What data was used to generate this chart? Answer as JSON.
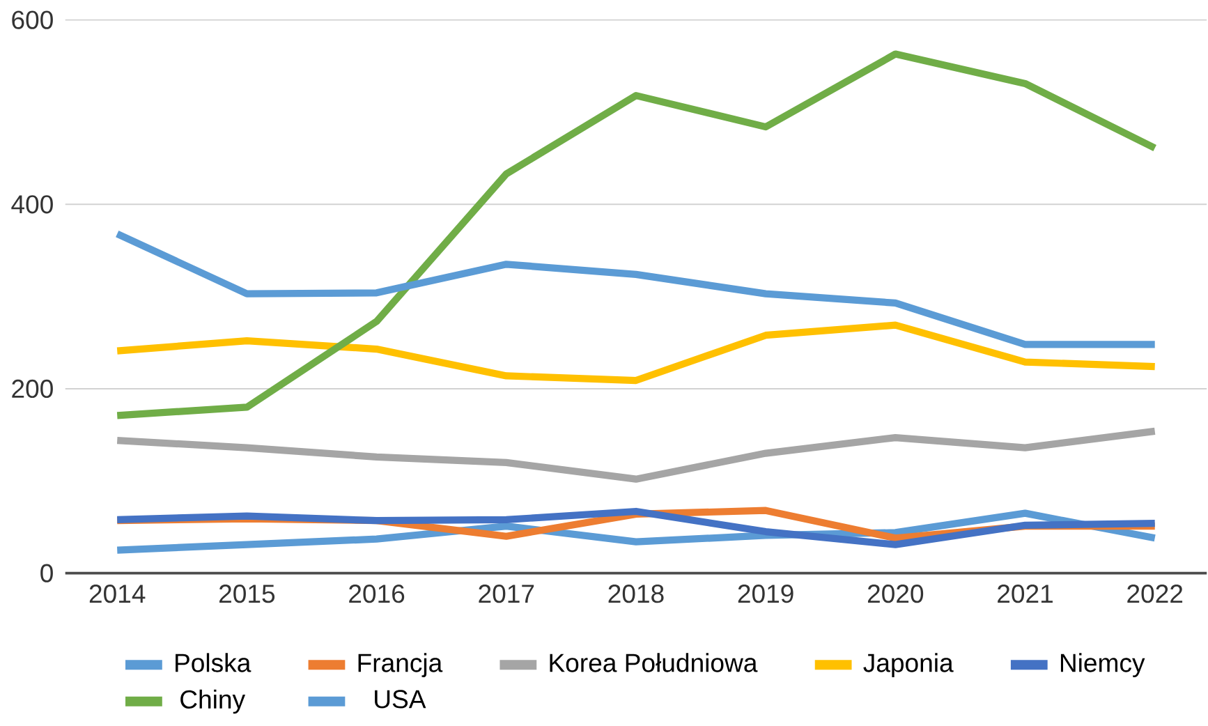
{
  "chart_data": {
    "type": "line",
    "categories": [
      "2014",
      "2015",
      "2016",
      "2017",
      "2018",
      "2019",
      "2020",
      "2021",
      "2022"
    ],
    "ylim": [
      0,
      600
    ],
    "yticks": [
      0,
      200,
      400,
      600
    ],
    "grid": "y",
    "legend": "bottom",
    "marker": "none",
    "line_style": "solid",
    "series": [
      {
        "name": "Polska",
        "color": "#5b9bd5",
        "values": [
          25,
          31,
          37,
          51,
          34,
          41,
          44,
          65,
          38
        ]
      },
      {
        "name": "Francja",
        "color": "#ed7d31",
        "values": [
          57,
          59,
          57,
          40,
          64,
          68,
          38,
          51,
          51
        ]
      },
      {
        "name": "Korea Południowa",
        "color": "#a5a5a5",
        "values": [
          144,
          136,
          126,
          120,
          102,
          130,
          147,
          136,
          154
        ]
      },
      {
        "name": "Japonia",
        "color": "#ffc000",
        "values": [
          241,
          252,
          243,
          214,
          209,
          258,
          269,
          229,
          224
        ]
      },
      {
        "name": "Niemcy",
        "color": "#4472c4",
        "values": [
          58,
          62,
          57,
          58,
          67,
          45,
          31,
          52,
          54
        ]
      },
      {
        "name": "Chiny",
        "color": "#70ad47",
        "values": [
          171,
          180,
          273,
          433,
          518,
          484,
          563,
          531,
          461
        ]
      },
      {
        "name": "USA",
        "color": "#5b9bd5",
        "values": [
          368,
          303,
          304,
          335,
          324,
          303,
          293,
          248,
          248
        ]
      }
    ]
  }
}
